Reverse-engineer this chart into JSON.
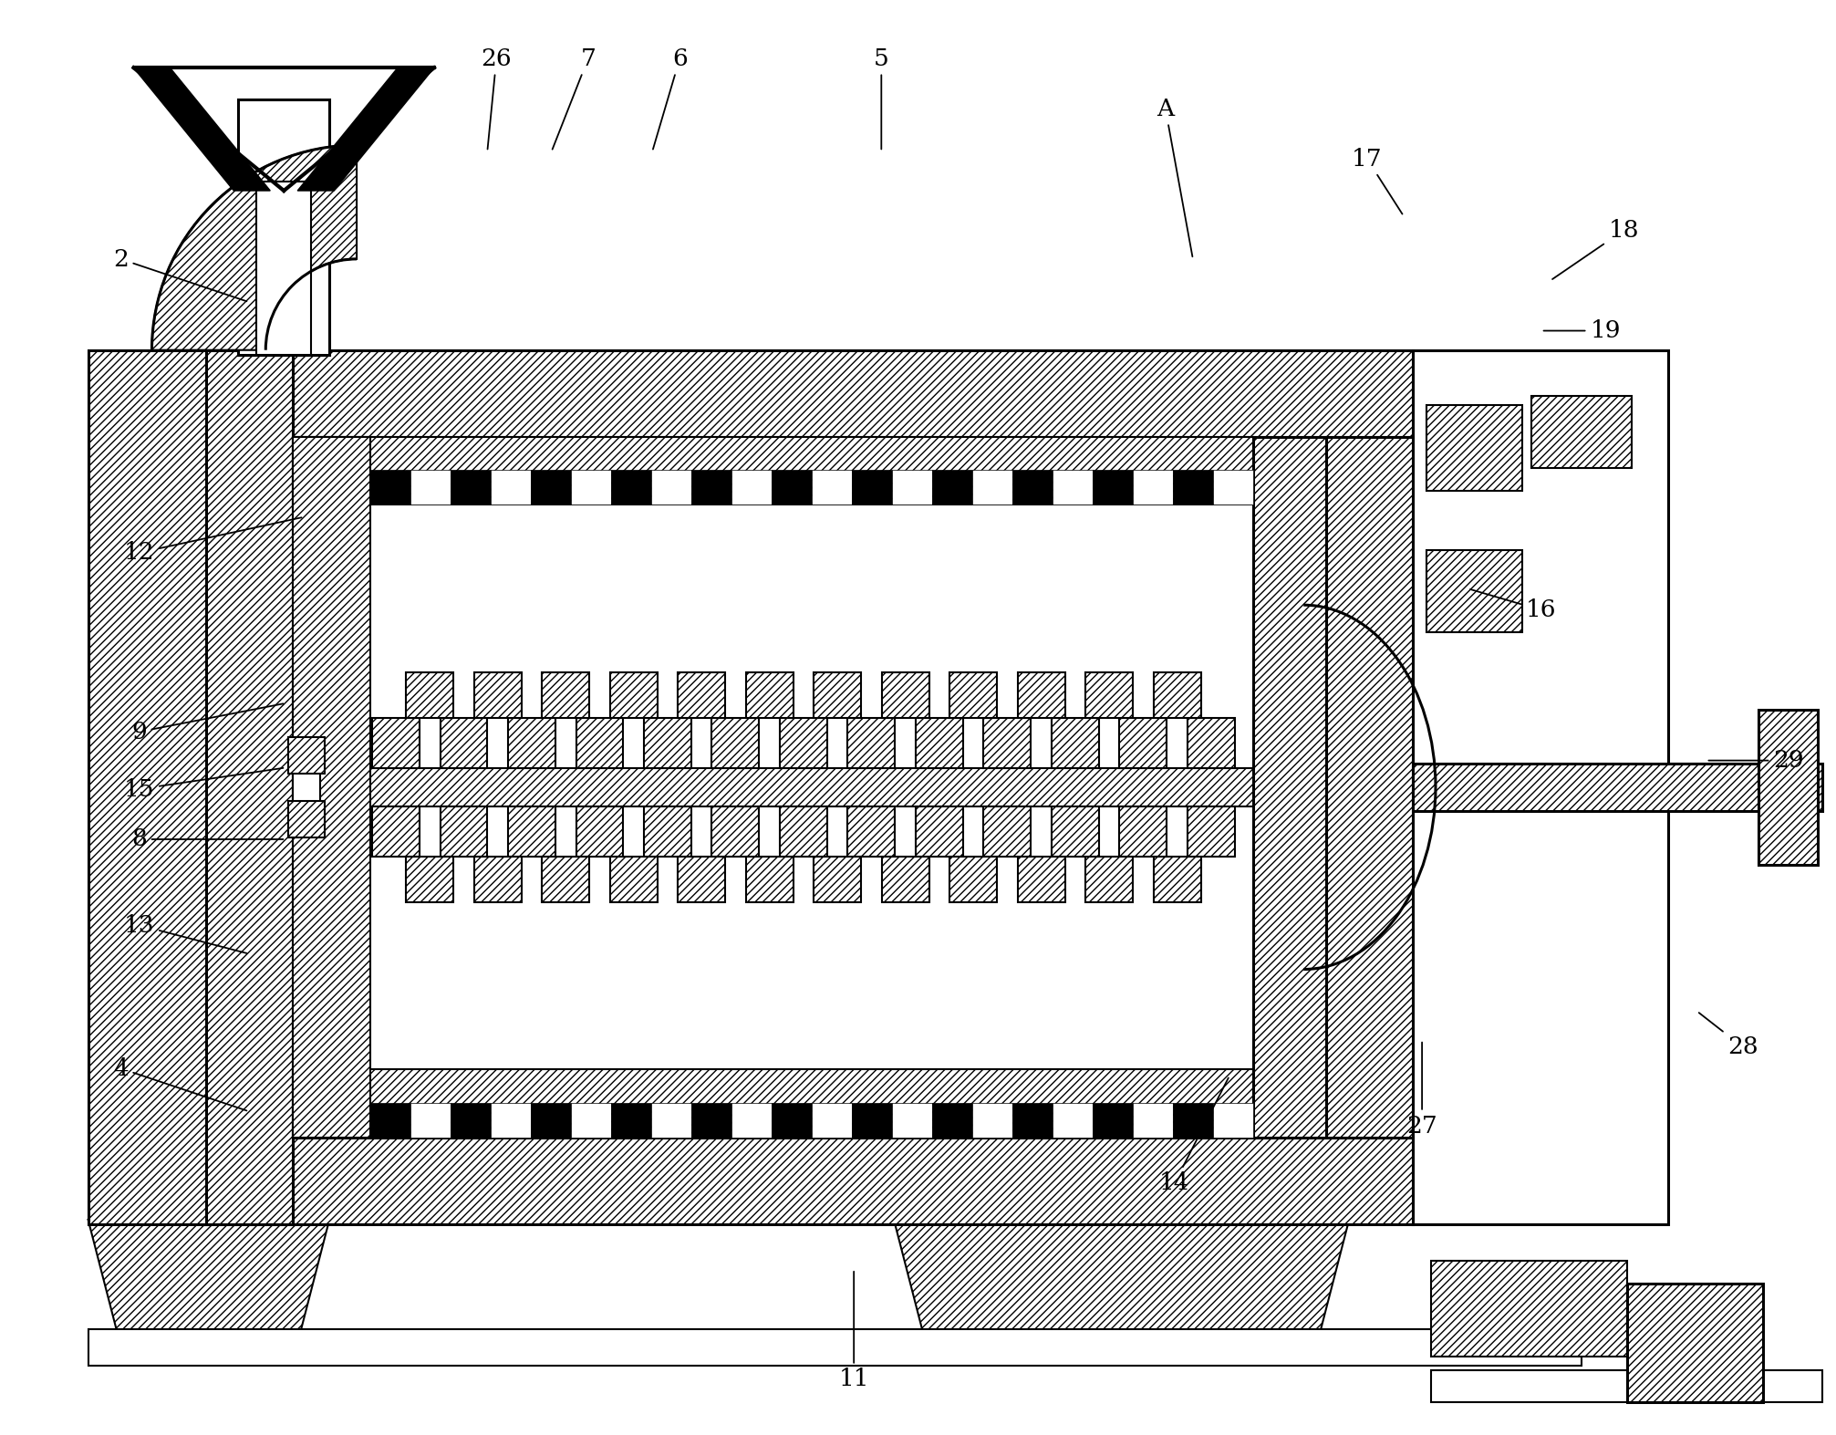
{
  "fig_width": 20.13,
  "fig_height": 15.73,
  "dpi": 100,
  "bg_color": "#ffffff",
  "line_color": "#000000",
  "label_positions": {
    "2": [
      0.065,
      0.82,
      0.135,
      0.79
    ],
    "4": [
      0.065,
      0.255,
      0.135,
      0.225
    ],
    "5": [
      0.48,
      0.96,
      0.48,
      0.895
    ],
    "6": [
      0.37,
      0.96,
      0.355,
      0.895
    ],
    "7": [
      0.32,
      0.96,
      0.3,
      0.895
    ],
    "8": [
      0.075,
      0.415,
      0.155,
      0.415
    ],
    "9": [
      0.075,
      0.49,
      0.155,
      0.51
    ],
    "11": [
      0.465,
      0.038,
      0.465,
      0.115
    ],
    "12": [
      0.075,
      0.615,
      0.165,
      0.64
    ],
    "13": [
      0.075,
      0.355,
      0.135,
      0.335
    ],
    "14": [
      0.64,
      0.175,
      0.67,
      0.25
    ],
    "15": [
      0.075,
      0.45,
      0.155,
      0.465
    ],
    "16": [
      0.84,
      0.575,
      0.8,
      0.59
    ],
    "17": [
      0.745,
      0.89,
      0.765,
      0.85
    ],
    "18": [
      0.885,
      0.84,
      0.845,
      0.805
    ],
    "19": [
      0.875,
      0.77,
      0.84,
      0.77
    ],
    "26": [
      0.27,
      0.96,
      0.265,
      0.895
    ],
    "27": [
      0.775,
      0.215,
      0.775,
      0.275
    ],
    "28": [
      0.95,
      0.27,
      0.925,
      0.295
    ],
    "29": [
      0.975,
      0.47,
      0.93,
      0.47
    ],
    "A": [
      0.635,
      0.925,
      0.65,
      0.82
    ]
  }
}
